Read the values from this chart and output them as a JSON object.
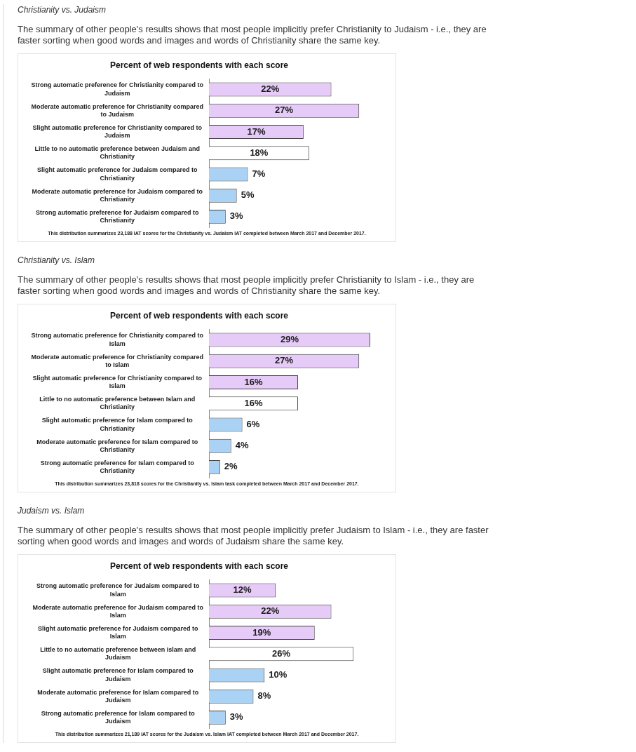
{
  "chart_data": [
    {
      "type": "bar",
      "orientation": "horizontal",
      "title": "Christianity vs. Judaism",
      "subtitle": "The summary of other people's results shows that most people implicitly prefer Christianity to Judaism - i.e., they are faster sorting when good words and images and words of Christianity share the same key.",
      "annotations": [
        "Percent of web respondents with each score",
        "This distribution summarizes 23,188 IAT scores for the Christianity vs. Judaism IAT completed between March 2017 and December 2017."
      ],
      "categories": [
        "Strong automatic preference for Christianity compared to Judaism",
        "Moderate automatic preference for Christianity compared to Judaism",
        "Slight automatic preference for Christianity compared to Judaism",
        "Little to no automatic preference between Judaism and Christianity",
        "Slight automatic preference for Judaism compared to Christianity",
        "Moderate automatic preference for Judaism compared to Christianity",
        "Strong automatic preference for Judaism compared to Christianity"
      ],
      "values": [
        22,
        27,
        17,
        18,
        7,
        5,
        3
      ],
      "colors": [
        "#e6cbf8",
        "#e6cbf8",
        "#e6cbf8",
        "#ffffff",
        "#a9d2f5",
        "#a9d2f5",
        "#a9d2f5"
      ],
      "value_labels": [
        "22%",
        "27%",
        "17%",
        "18%",
        "7%",
        "5%",
        "3%"
      ],
      "tick_labels": "y"
    },
    {
      "type": "bar",
      "orientation": "horizontal",
      "title": "Christianity vs. Islam",
      "subtitle": "The summary of other people's results shows that most people implicitly prefer Christianity to Islam - i.e., they are faster sorting when good words and images and words of Christianity share the same key.",
      "annotations": [
        "Percent of web respondents with each score",
        "This distribution summarizes 23,818 scores for the Christianity vs. Islam task completed between March 2017 and December 2017."
      ],
      "categories": [
        "Strong automatic preference for Christianity compared to Islam",
        "Moderate automatic preference for Christianity compared to Islam",
        "Slight automatic preference for Christianity compared to Islam",
        "Little to no automatic preference between Islam and Christianity",
        "Slight automatic preference for Islam compared to Christianity",
        "Moderate automatic preference for Islam compared to Christianity",
        "Strong automatic preference for Islam compared to Christianity"
      ],
      "values": [
        29,
        27,
        16,
        16,
        6,
        4,
        2
      ],
      "colors": [
        "#e6cbf8",
        "#e6cbf8",
        "#e6cbf8",
        "#ffffff",
        "#a9d2f5",
        "#a9d2f5",
        "#a9d2f5"
      ],
      "value_labels": [
        "29%",
        "27%",
        "16%",
        "16%",
        "6%",
        "4%",
        "2%"
      ],
      "tick_labels": "y"
    },
    {
      "type": "bar",
      "orientation": "horizontal",
      "title": "Judaism vs. Islam",
      "subtitle": "The summary of other people's results shows that most people implicitly prefer Judaism to Islam - i.e., they are faster sorting when good words and images and words of Judaism share the same key.",
      "annotations": [
        "Percent of web respondents with each score",
        "This distribution summarizes 21,189 IAT scores for the Judaism vs. Islam IAT completed between March 2017 and December 2017."
      ],
      "categories": [
        "Strong automatic preference for Judaism compared to Islam",
        "Moderate automatic preference for Judaism compared to Islam",
        "Slight automatic preference for Judaism compared to Islam",
        "Little to no automatic preference between Islam and Judaism",
        "Slight automatic preference for Islam compared to Judaism",
        "Moderate automatic preference for Islam compared to Judaism",
        "Strong automatic preference for Islam compared to Judaism"
      ],
      "values": [
        12,
        22,
        19,
        26,
        10,
        8,
        3
      ],
      "colors": [
        "#e6cbf8",
        "#e6cbf8",
        "#e6cbf8",
        "#ffffff",
        "#a9d2f5",
        "#a9d2f5",
        "#a9d2f5"
      ],
      "value_labels": [
        "12%",
        "22%",
        "19%",
        "26%",
        "10%",
        "8%",
        "3%"
      ],
      "tick_labels": "y"
    }
  ]
}
